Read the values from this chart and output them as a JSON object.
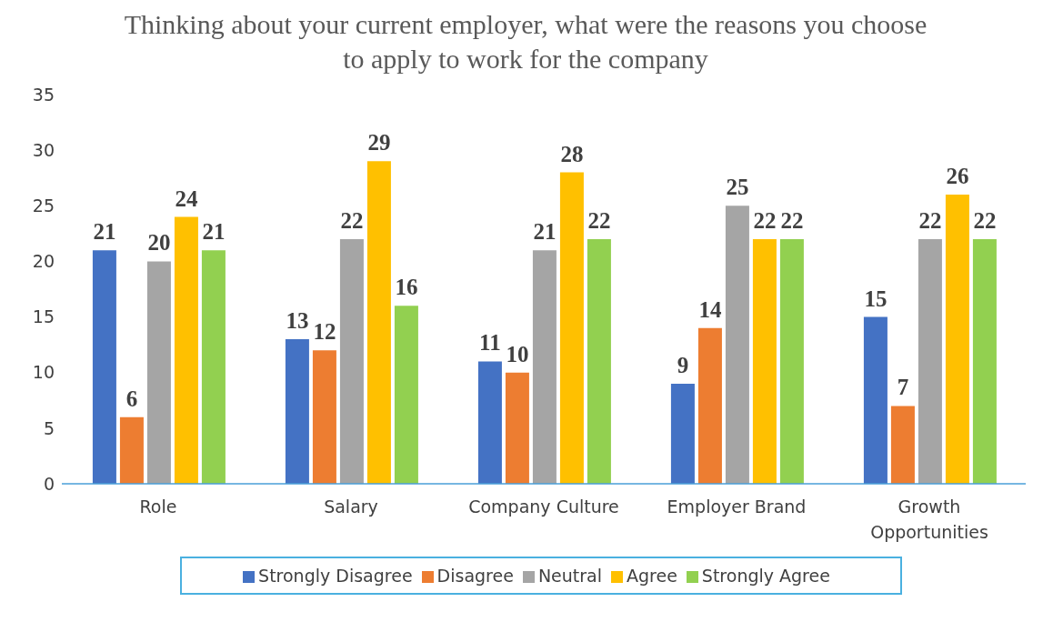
{
  "chart_data": {
    "type": "bar",
    "title": "Thinking about your current employer, what were the reasons you choose to apply to work for the company",
    "categories": [
      "Role",
      "Salary",
      "Company Culture",
      "Employer Brand",
      "Growth Opportunities"
    ],
    "series": [
      {
        "name": "Strongly Disagree",
        "color": "#4472c4",
        "values": [
          21,
          13,
          11,
          9,
          15
        ]
      },
      {
        "name": "Disagree",
        "color": "#ed7d31",
        "values": [
          6,
          12,
          10,
          14,
          7
        ]
      },
      {
        "name": "Neutral",
        "color": "#a5a5a5",
        "values": [
          20,
          22,
          21,
          25,
          22
        ]
      },
      {
        "name": "Agree",
        "color": "#ffc000",
        "values": [
          24,
          29,
          28,
          22,
          26
        ]
      },
      {
        "name": "Strongly Agree",
        "color": "#92d050",
        "values": [
          21,
          16,
          22,
          22,
          22
        ]
      }
    ],
    "ylim": [
      0,
      35
    ],
    "yticks": [
      0,
      5,
      10,
      15,
      20,
      25,
      30,
      35
    ],
    "data_labels": true,
    "legend": "bottom"
  }
}
